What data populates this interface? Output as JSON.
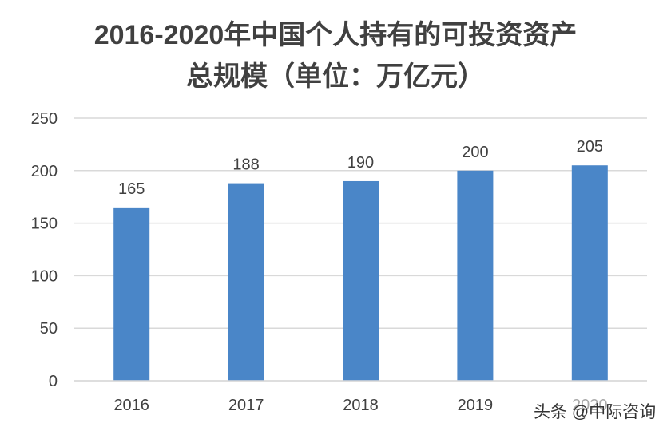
{
  "chart_data": {
    "type": "bar",
    "title": "2016-2020年中国个人持有的可投资资产总规模（单位：万亿元）",
    "title_lines": [
      "2016-2020年中国个人持有的可投资资产",
      "总规模（单位：万亿元）"
    ],
    "categories": [
      "2016",
      "2017",
      "2018",
      "2019",
      "2020"
    ],
    "values": [
      165,
      188,
      190,
      200,
      205
    ],
    "data_labels": [
      "165",
      "188",
      "190",
      "200",
      "205"
    ],
    "xlabel": "",
    "ylabel": "",
    "ylim": [
      0,
      250
    ],
    "yticks": [
      0,
      50,
      100,
      150,
      200,
      250
    ],
    "grid": true,
    "legend": "none",
    "bar_color": "#4a86c8",
    "gridline_color": "#d9d9d9"
  },
  "watermark": "头条 @中际咨询"
}
